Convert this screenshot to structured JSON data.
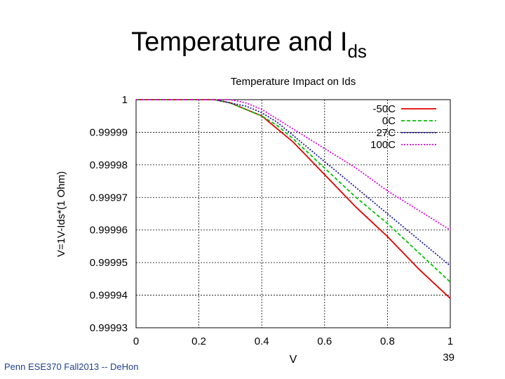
{
  "slide": {
    "title": "Temperature and I",
    "title_sub": "ds",
    "footer": "Penn ESE370 Fall2013 -- DeHon",
    "page": "39"
  },
  "chart_data": {
    "type": "line",
    "title": "Temperature Impact on Ids",
    "x_label": "V",
    "y_label": "V=1V-Ids*(1 Ohm)",
    "x": [
      0,
      0.1,
      0.2,
      0.25,
      0.3,
      0.35,
      0.4,
      0.45,
      0.5,
      0.6,
      0.7,
      0.8,
      0.9,
      1.0
    ],
    "series": [
      {
        "name": "-50C",
        "color": "#e00000",
        "dash": "solid",
        "values": [
          1,
          1,
          1,
          1,
          0.999999,
          0.999997,
          0.999995,
          0.999991,
          0.999987,
          0.999977,
          0.999967,
          0.999958,
          0.999948,
          0.999939
        ]
      },
      {
        "name": "0C",
        "color": "#00c000",
        "dash": "dashed",
        "values": [
          1,
          1,
          1,
          1,
          0.999999,
          0.999997,
          0.999995,
          0.999992,
          0.999988,
          0.999979,
          0.99997,
          0.999962,
          0.999953,
          0.999944
        ]
      },
      {
        "name": "27C",
        "color": "#1a1a9a",
        "dash": "dotted",
        "values": [
          1,
          1,
          1,
          1,
          0.999999,
          0.999998,
          0.999996,
          0.999993,
          0.999989,
          0.999981,
          0.999973,
          0.999965,
          0.999957,
          0.999949
        ]
      },
      {
        "name": "100C",
        "color": "#e000e0",
        "dash": "dotted",
        "values": [
          1,
          1,
          1,
          1,
          1,
          0.999999,
          0.999997,
          0.999994,
          0.999991,
          0.999985,
          0.999979,
          0.999972,
          0.999966,
          0.99996
        ]
      }
    ],
    "xlim": [
      0,
      1
    ],
    "xticks": [
      0,
      0.2,
      0.4,
      0.6,
      0.8,
      1
    ],
    "ylim": [
      0.99993,
      1
    ],
    "yticks": [
      0.99993,
      0.99994,
      0.99995,
      0.99996,
      0.99997,
      0.99998,
      0.99999,
      1
    ],
    "grid": true,
    "legend": "top-right"
  }
}
